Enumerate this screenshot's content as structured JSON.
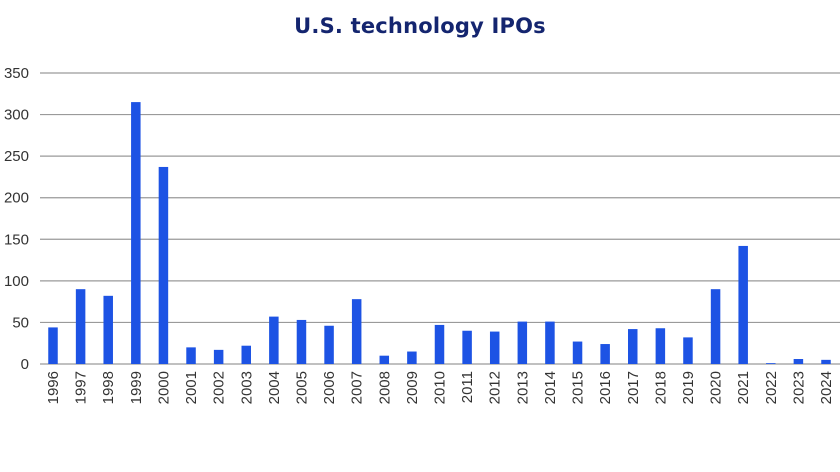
{
  "chart_data": {
    "type": "bar",
    "title": "U.S. technology IPOs",
    "xlabel": "",
    "ylabel": "",
    "categories": [
      "1996",
      "1997",
      "1998",
      "1999",
      "2000",
      "2001",
      "2002",
      "2003",
      "2004",
      "2005",
      "2006",
      "2007",
      "2008",
      "2009",
      "2010",
      "2011",
      "2012",
      "2013",
      "2014",
      "2015",
      "2016",
      "2017",
      "2018",
      "2019",
      "2020",
      "2021",
      "2022",
      "2023",
      "2024"
    ],
    "values": [
      44,
      90,
      82,
      315,
      237,
      20,
      17,
      22,
      57,
      53,
      46,
      78,
      10,
      15,
      47,
      40,
      39,
      51,
      51,
      27,
      24,
      42,
      43,
      32,
      90,
      142,
      1,
      6,
      5
    ],
    "ylim": [
      0,
      350
    ],
    "yticks": [
      0,
      50,
      100,
      150,
      200,
      250,
      300,
      350
    ],
    "grid": true,
    "legend": "none",
    "bar_color": "#1d53e4",
    "title_color": "#14256f"
  }
}
